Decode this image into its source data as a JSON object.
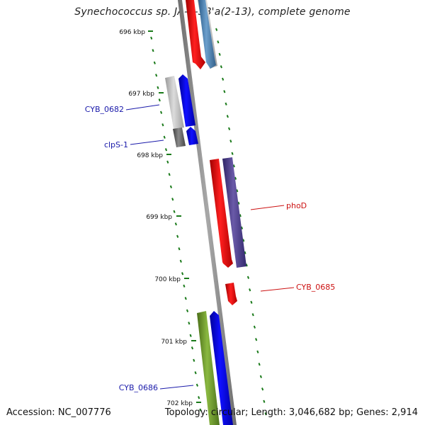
{
  "title": "Synechococcus sp. JA-2-3B'a(2-13), complete genome",
  "footer": {
    "accession": "Accession: NC_007776",
    "summary": "Topology: circular; Length: 3,046,682 bp; Genes: 2,914"
  },
  "ticks": [
    "696 kbp",
    "697 kbp",
    "698 kbp",
    "699 kbp",
    "700 kbp",
    "701 kbp",
    "702 kbp"
  ],
  "gene_labels": {
    "cyb_0682": "CYB_0682",
    "clps1": "clpS-1",
    "phod": "phoD",
    "cyb_0685": "CYB_0685",
    "cyb_0686": "CYB_0686"
  },
  "colors": {
    "backbone": "#8c8c8c",
    "tick": "#1a7a1a",
    "label_blue": "#1a1aaa",
    "label_red": "#cc1111",
    "red": "#ee1111",
    "blue": "#0000ee",
    "steelblue": "#4a7fb0",
    "purple": "#4b3c8c",
    "olive": "#6a9a2a",
    "grey": "#b4b4b4",
    "darkgrey": "#606060"
  }
}
